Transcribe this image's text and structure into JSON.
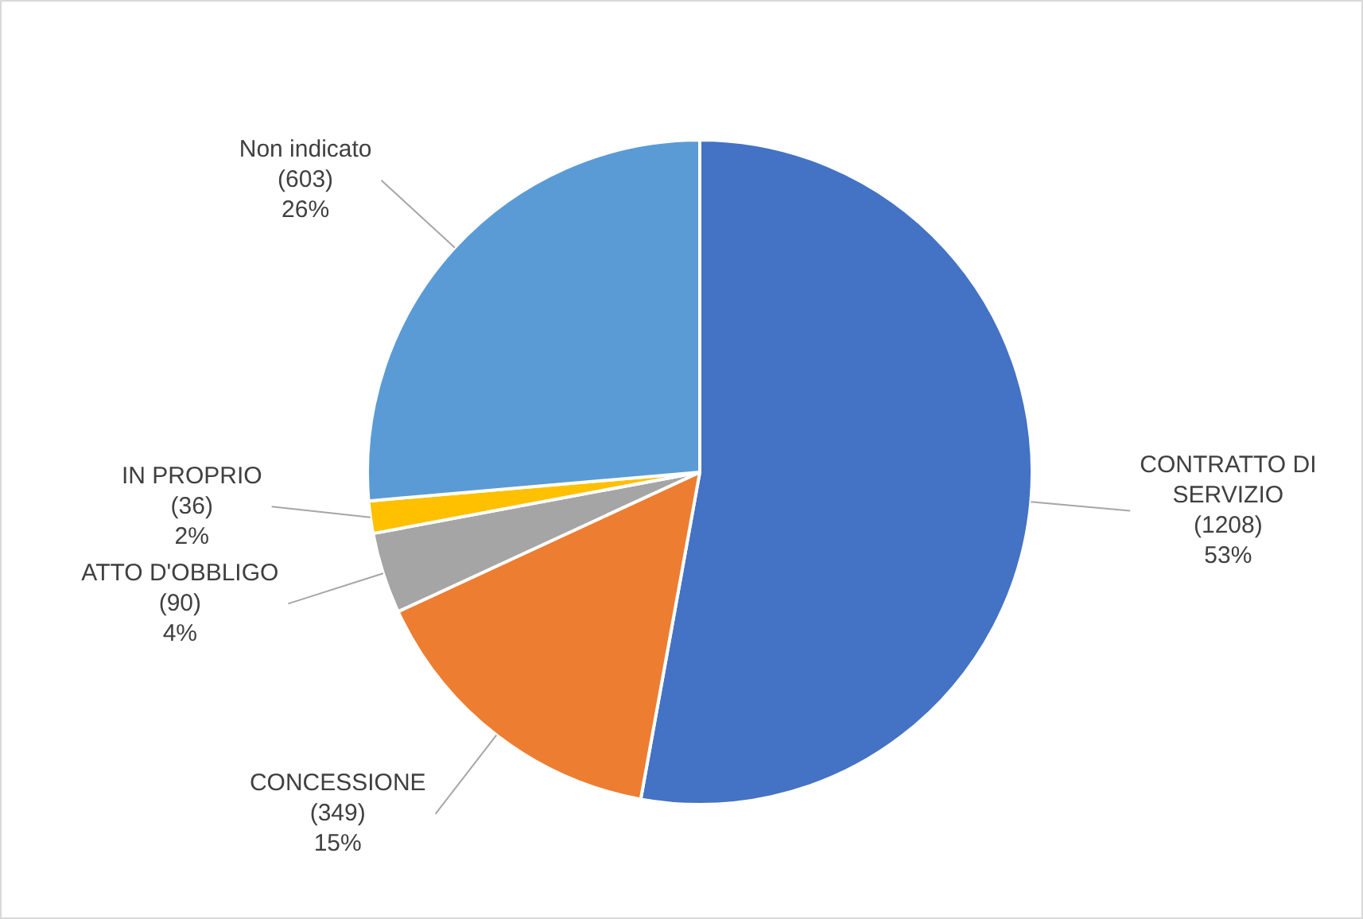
{
  "chart_data": {
    "type": "pie",
    "categories": [
      "CONTRATTO DI SERVIZIO",
      "CONCESSIONE",
      "ATTO D'OBBLIGO",
      "IN PROPRIO",
      "Non indicato"
    ],
    "values": [
      1208,
      349,
      90,
      36,
      603
    ],
    "colors": [
      "#4472c4",
      "#ed7d31",
      "#a5a5a5",
      "#ffc000",
      "#5b9bd5"
    ],
    "value_labels": [
      "(1208)\n53%",
      "(349)\n15%",
      "(90)\n4%",
      "(36)\n2%",
      "(603)\n26%"
    ],
    "legend": false
  }
}
